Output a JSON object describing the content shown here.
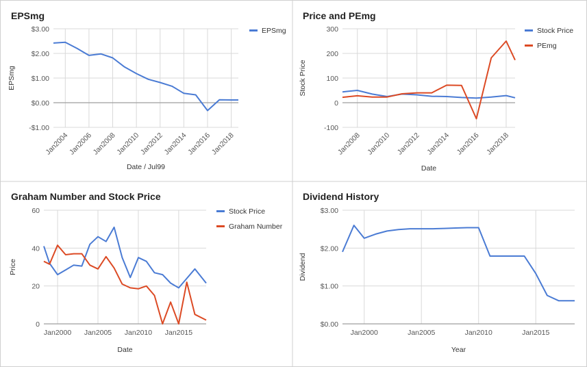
{
  "colors": {
    "blue": "#4a7bd4",
    "red": "#dc4a24",
    "grid": "#d9d9d9",
    "zero": "#9e9e9e",
    "text": "#555555",
    "title": "#222222"
  },
  "chart_data": [
    {
      "type": "line",
      "title": "EPSmg",
      "xlabel": "Date / Jul99",
      "ylabel": "EPSmg",
      "ylim": [
        -1,
        3
      ],
      "xlim": [
        2003.0,
        2018.6
      ],
      "yticks": [
        -1,
        0,
        1,
        2,
        3
      ],
      "yticklabels": [
        "-$1.00",
        "$0.00",
        "$1.00",
        "$2.00",
        "$3.00"
      ],
      "xticks": [
        2004,
        2006,
        2008,
        2010,
        2012,
        2014,
        2016,
        2018
      ],
      "xticklabels": [
        "Jan2004",
        "Jan2006",
        "Jan2008",
        "Jan2010",
        "Jan2012",
        "Jan2014",
        "Jan2016",
        "Jan2018"
      ],
      "legend": "top-right",
      "grid": true,
      "series": [
        {
          "name": "EPSmg",
          "color": "#4a7bd4",
          "x": [
            2003,
            2004,
            2005,
            2006,
            2007,
            2008,
            2009,
            2010,
            2011,
            2012,
            2013,
            2014,
            2015,
            2016,
            2017,
            2018,
            2018.6
          ],
          "y": [
            2.42,
            2.45,
            2.2,
            1.92,
            1.98,
            1.82,
            1.45,
            1.18,
            0.95,
            0.82,
            0.67,
            0.38,
            0.32,
            -0.32,
            0.12,
            0.11,
            0.11
          ]
        }
      ]
    },
    {
      "type": "line",
      "title": "Price and PEmg",
      "xlabel": "Date",
      "ylabel": "Stock Price",
      "ylim": [
        -100,
        300
      ],
      "xlim": [
        2007.0,
        2018.6
      ],
      "yticks": [
        -100,
        0,
        100,
        200,
        300
      ],
      "yticklabels": [
        "-100",
        "0",
        "100",
        "200",
        "300"
      ],
      "xticks": [
        2008,
        2010,
        2012,
        2014,
        2016,
        2018
      ],
      "xticklabels": [
        "Jan2008",
        "Jan2010",
        "Jan2012",
        "Jan2014",
        "Jan2016",
        "Jan2018"
      ],
      "legend": "top-right",
      "grid": true,
      "series": [
        {
          "name": "Stock Price",
          "color": "#4a7bd4",
          "x": [
            2007,
            2008,
            2009,
            2010,
            2011,
            2012,
            2013,
            2014,
            2015,
            2016,
            2017,
            2018,
            2018.6
          ],
          "y": [
            44,
            50,
            35,
            25,
            35,
            32,
            26,
            25,
            21,
            19,
            23,
            29,
            20
          ]
        },
        {
          "name": "PEmg",
          "color": "#dc4a24",
          "x": [
            2007,
            2008,
            2009,
            2010,
            2011,
            2012,
            2013,
            2014,
            2015,
            2016,
            2017,
            2018,
            2018.6
          ],
          "y": [
            22,
            28,
            23,
            23,
            36,
            40,
            40,
            71,
            70,
            -65,
            182,
            250,
            173
          ]
        }
      ]
    },
    {
      "type": "line",
      "title": "Graham Number and Stock Price",
      "xlabel": "Date",
      "ylabel": "Price",
      "ylim": [
        0,
        60
      ],
      "xlim": [
        1998.3,
        2018.4
      ],
      "yticks": [
        0,
        20,
        40,
        60
      ],
      "yticklabels": [
        "0",
        "20",
        "40",
        "60"
      ],
      "xticks": [
        2000,
        2005,
        2010,
        2015
      ],
      "xticklabels": [
        "Jan2000",
        "Jan2005",
        "Jan2010",
        "Jan2015"
      ],
      "legend": "top-right",
      "grid": true,
      "series": [
        {
          "name": "Stock Price",
          "color": "#4a7bd4",
          "x": [
            1998.3,
            1999,
            2000,
            2001,
            2002,
            2003,
            2004,
            2005,
            2006,
            2007,
            2008,
            2009,
            2010,
            2011,
            2012,
            2013,
            2014,
            2015,
            2016,
            2017,
            2018.4
          ],
          "y": [
            41,
            32,
            26,
            28.5,
            31,
            30.5,
            42,
            46,
            43.5,
            51,
            35,
            24.5,
            35,
            33,
            27,
            26,
            21.5,
            19,
            24,
            29,
            21.5
          ]
        },
        {
          "name": "Graham Number",
          "color": "#dc4a24",
          "x": [
            1998.3,
            1999,
            2000,
            2001,
            2002,
            2003,
            2004,
            2005,
            2006,
            2007,
            2008,
            2009,
            2010,
            2011,
            2012,
            2013,
            2014,
            2015,
            2016,
            2017,
            2018.4
          ],
          "y": [
            33,
            31.5,
            41.5,
            36.5,
            37,
            37,
            31,
            29,
            35.5,
            29.5,
            21,
            19,
            18.5,
            20,
            15,
            0,
            11.5,
            0,
            22,
            5,
            2
          ]
        }
      ]
    },
    {
      "type": "line",
      "title": "Dividend History",
      "xlabel": "Year",
      "ylabel": "Dividend",
      "ylim": [
        0,
        3
      ],
      "xlim": [
        1998.1,
        2018.4
      ],
      "yticks": [
        0,
        1,
        2,
        3
      ],
      "yticklabels": [
        "$0.00",
        "$1.00",
        "$2.00",
        "$3.00"
      ],
      "xticks": [
        2000,
        2005,
        2010,
        2015
      ],
      "xticklabels": [
        "Jan2000",
        "Jan2005",
        "Jan2010",
        "Jan2015"
      ],
      "legend": "none",
      "grid": true,
      "series": [
        {
          "name": "",
          "color": "#4a7bd4",
          "x": [
            1998.1,
            1999.1,
            2000,
            2001,
            2002,
            2003,
            2004,
            2005,
            2006,
            2007,
            2008,
            2009,
            2010,
            2011,
            2012,
            2013,
            2014,
            2015,
            2016,
            2017,
            2018.4
          ],
          "y": [
            1.9,
            2.6,
            2.26,
            2.37,
            2.45,
            2.49,
            2.51,
            2.51,
            2.51,
            2.52,
            2.53,
            2.54,
            2.54,
            1.79,
            1.79,
            1.79,
            1.79,
            1.33,
            0.75,
            0.61,
            0.61
          ]
        }
      ]
    }
  ]
}
